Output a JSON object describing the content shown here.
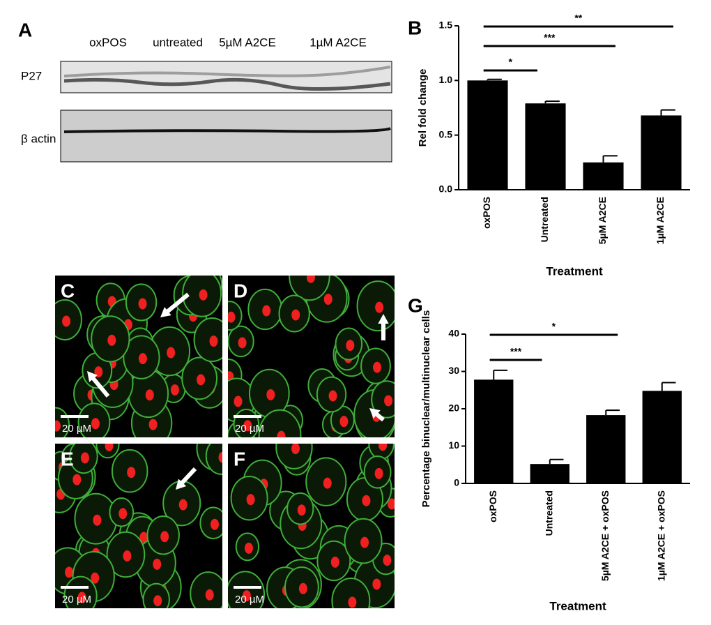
{
  "figure": {
    "panel_a": {
      "letter": "A",
      "lanes": [
        "oxPOS",
        "untreated",
        "5µM A2CE",
        "1µM A2CE"
      ],
      "rows": [
        "P27",
        "β actin"
      ]
    },
    "micrographs": [
      {
        "letter": "C",
        "scale_label": "20 µM"
      },
      {
        "letter": "D",
        "scale_label": "20 µM"
      },
      {
        "letter": "E",
        "scale_label": "20 µM"
      },
      {
        "letter": "F",
        "scale_label": "20 µM"
      }
    ]
  },
  "chart_data": [
    {
      "type": "bar",
      "letter": "B",
      "y_label": "Rel fold change",
      "x_label": "Treatment",
      "categories": [
        "oxPOS",
        "Untreated",
        "5µM A2CE",
        "1µM A2CE"
      ],
      "values": [
        1.0,
        0.79,
        0.25,
        0.68
      ],
      "errors": [
        0.01,
        0.02,
        0.06,
        0.05
      ],
      "ylim": [
        0,
        1.5
      ],
      "yticks": [
        {
          "value": 0,
          "label": "0.0"
        },
        0.5,
        {
          "value": 1,
          "label": "1.0"
        },
        1.5
      ],
      "color": "#000000",
      "comparisons": [
        {
          "label": "*",
          "categories": [
            0,
            1
          ]
        },
        {
          "label": "***",
          "categories": [
            0,
            2
          ]
        },
        {
          "label": "**",
          "categories": [
            0,
            3
          ]
        }
      ]
    },
    {
      "type": "bar",
      "letter": "G",
      "y_label": "Percentage binuclear/multinuclear cells",
      "x_label": "Treatment",
      "categories": [
        "oxPOS",
        "Untreated",
        "5µM A2CE + oxPOS",
        "1µM A2CE + oxPOS"
      ],
      "values": [
        27.8,
        5.2,
        18.3,
        24.8
      ],
      "errors": [
        2.5,
        1.2,
        1.3,
        2.2
      ],
      "ylim": [
        0,
        40
      ],
      "yticks": [
        0,
        10,
        20,
        30,
        40
      ],
      "color": "#000000",
      "comparisons": [
        {
          "label": "***",
          "categories": [
            0,
            1
          ]
        },
        {
          "label": "*",
          "categories": [
            0,
            2
          ]
        }
      ]
    }
  ]
}
